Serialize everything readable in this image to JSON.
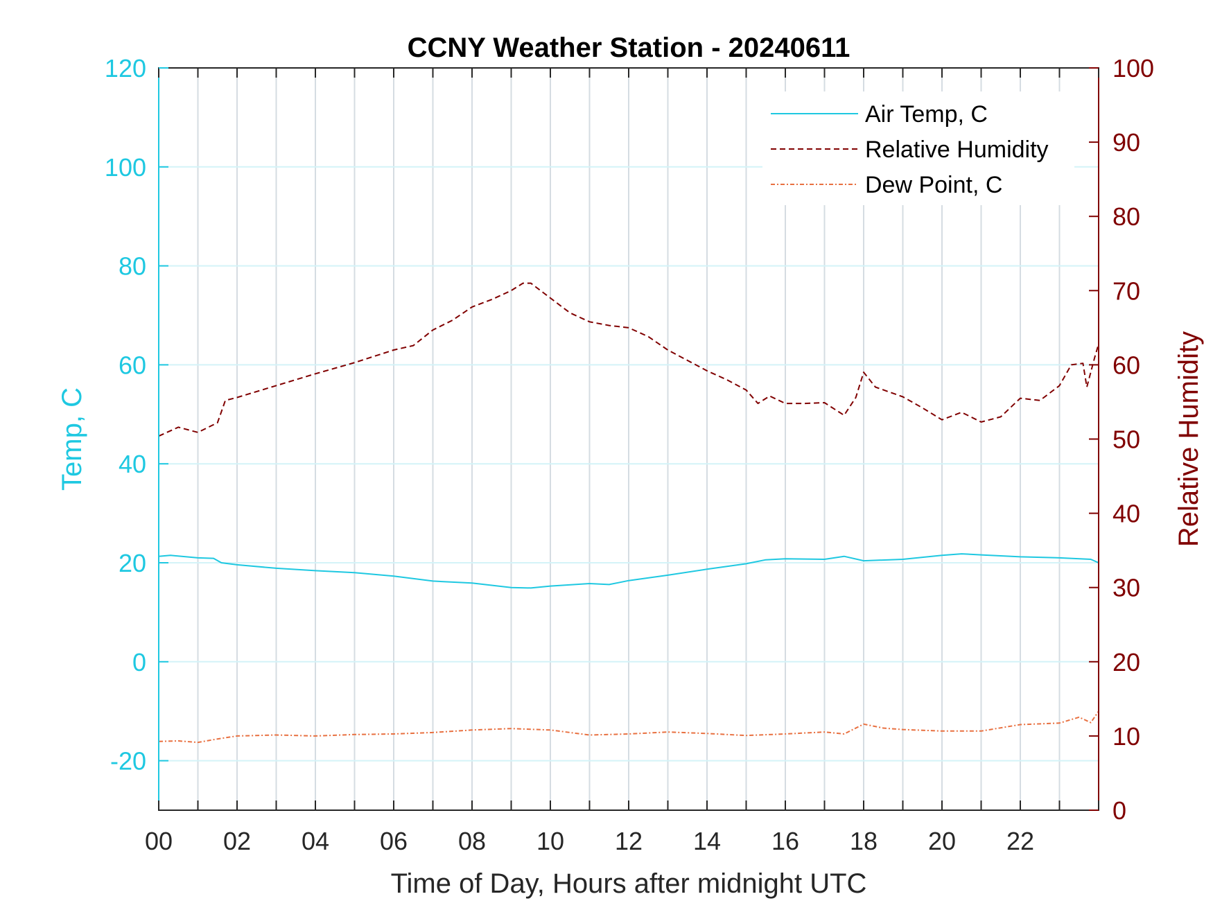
{
  "chart_data": {
    "type": "line",
    "title": "CCNY Weather Station - 20240611",
    "xlabel": "Time of Day, Hours after midnight UTC",
    "xlim": [
      0,
      24
    ],
    "x_ticks": [
      0,
      2,
      4,
      6,
      8,
      10,
      12,
      14,
      16,
      18,
      20,
      22
    ],
    "x_tick_labels": [
      "00",
      "02",
      "04",
      "06",
      "08",
      "10",
      "12",
      "14",
      "16",
      "18",
      "20",
      "22"
    ],
    "y_left": {
      "label": "Temp, C",
      "lim": [
        -30,
        120
      ],
      "ticks": [
        -20,
        0,
        20,
        40,
        60,
        80,
        100,
        120
      ],
      "tick_labels": [
        "-20",
        "0",
        "20",
        "40",
        "60",
        "80",
        "100",
        "120"
      ],
      "color": "#1ec8e1"
    },
    "y_right": {
      "label": "Relative Humidity",
      "lim": [
        0,
        100
      ],
      "ticks": [
        0,
        10,
        20,
        30,
        40,
        50,
        60,
        70,
        80,
        90,
        100
      ],
      "tick_labels": [
        "0",
        "10",
        "20",
        "30",
        "40",
        "50",
        "60",
        "70",
        "80",
        "90",
        "100"
      ],
      "color": "#800000"
    },
    "grid": true,
    "legend_position": "top-right",
    "series": [
      {
        "name": "Air Temp, C",
        "axis": "left",
        "color": "#1ec8e1",
        "style": "solid",
        "x": [
          0,
          0.3,
          1.0,
          1.4,
          1.6,
          2,
          3,
          4,
          5,
          6,
          7,
          8,
          9,
          9.5,
          10,
          11,
          11.5,
          12,
          13,
          14,
          15,
          15.5,
          16,
          17,
          17.5,
          18,
          19,
          20,
          20.5,
          21,
          22,
          23,
          23.8,
          24
        ],
        "y": [
          21.3,
          21.5,
          21.0,
          20.9,
          20.0,
          19.6,
          18.9,
          18.4,
          18.0,
          17.3,
          16.3,
          15.9,
          15.0,
          14.9,
          15.3,
          15.8,
          15.6,
          16.4,
          17.5,
          18.7,
          19.8,
          20.6,
          20.8,
          20.7,
          21.3,
          20.4,
          20.7,
          21.5,
          21.8,
          21.6,
          21.2,
          21.0,
          20.7,
          20.0
        ]
      },
      {
        "name": "Relative Humidity",
        "axis": "right",
        "color": "#800000",
        "style": "dashed",
        "x": [
          0,
          0.5,
          1.0,
          1.5,
          1.7,
          2,
          3,
          4,
          5,
          6,
          6.5,
          7,
          7.5,
          8,
          8.5,
          9,
          9.3,
          9.5,
          10,
          10.5,
          11,
          11.5,
          12,
          12.5,
          13,
          13.5,
          14,
          14.5,
          15,
          15.3,
          15.6,
          16,
          16.5,
          17,
          17.5,
          17.8,
          18,
          18.3,
          19,
          19.5,
          20,
          20.5,
          21,
          21.5,
          22,
          22.5,
          23,
          23.3,
          23.6,
          23.7,
          23.9,
          24
        ],
        "y": [
          50.4,
          51.6,
          50.9,
          52.2,
          55.2,
          55.6,
          57.2,
          58.8,
          60.3,
          62.0,
          62.6,
          64.7,
          66.0,
          67.8,
          68.8,
          70.0,
          71.0,
          71.0,
          69.0,
          67.0,
          65.8,
          65.3,
          65.0,
          63.8,
          62.0,
          60.6,
          59.2,
          58.0,
          56.6,
          54.8,
          55.8,
          54.8,
          54.8,
          54.9,
          53.2,
          55.6,
          59.0,
          57.0,
          55.7,
          54.2,
          52.6,
          53.6,
          52.3,
          53.0,
          55.5,
          55.2,
          57.2,
          60.0,
          60.2,
          57.0,
          61.0,
          62.8
        ]
      },
      {
        "name": "Dew Point, C",
        "axis": "left",
        "color": "#e87040",
        "style": "dashdot",
        "x": [
          0,
          0.5,
          1,
          1.5,
          2,
          3,
          4,
          5,
          6,
          7,
          8,
          9,
          10,
          11,
          12,
          13,
          14,
          15,
          16,
          17,
          17.5,
          18,
          18.5,
          19,
          20,
          21,
          22,
          23,
          23.5,
          23.8,
          24
        ],
        "y": [
          -16.1,
          -16.0,
          -16.3,
          -15.6,
          -15.0,
          -14.8,
          -15.0,
          -14.7,
          -14.6,
          -14.3,
          -13.8,
          -13.5,
          -13.8,
          -14.8,
          -14.6,
          -14.2,
          -14.5,
          -14.9,
          -14.6,
          -14.2,
          -14.6,
          -12.6,
          -13.4,
          -13.7,
          -14.0,
          -14.0,
          -12.7,
          -12.4,
          -11.2,
          -12.3,
          -10.0
        ]
      }
    ]
  }
}
